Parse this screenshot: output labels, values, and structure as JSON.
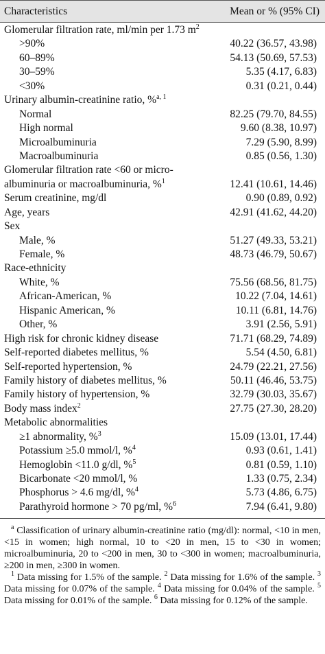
{
  "table": {
    "header": [
      "Characteristics",
      "Mean or % (95% CI)"
    ],
    "rows": [
      {
        "label": "Glomerular filtration rate, ml/min per 1.73 m",
        "sup": "2",
        "items": [
          {
            "label": ">90%",
            "value": "40.22 (36.57, 43.98)"
          },
          {
            "label": "60–89%",
            "value": "54.13 (50.69, 57.53)"
          },
          {
            "label": "30–59%",
            "value": "5.35 (4.17, 6.83)"
          },
          {
            "label": "<30%",
            "value": "0.31 (0.21, 0.44)"
          }
        ]
      },
      {
        "label": "Urinary albumin-creatinine ratio, %",
        "sup": "a, 1",
        "items": [
          {
            "label": "Normal",
            "value": "82.25 (79.70, 84.55)"
          },
          {
            "label": "High normal",
            "value": "9.60 (8.38, 10.97)"
          },
          {
            "label": "Microalbuminuria",
            "value": "7.29 (5.90, 8.99)"
          },
          {
            "label": "Macroalbuminuria",
            "value": "0.85 (0.56, 1.30)"
          }
        ]
      },
      {
        "label_lines": [
          "Glomerular filtration rate <60 or micro-",
          "albuminuria or macroalbuminuria, %"
        ],
        "sup": "1",
        "value": "12.41 (10.61, 14.46)"
      },
      {
        "label": "Serum creatinine, mg/dl",
        "value": "0.90 (0.89, 0.92)"
      },
      {
        "label": "Age, years",
        "value": "42.91 (41.62, 44.20)"
      },
      {
        "label": "Sex",
        "items": [
          {
            "label": "Male, %",
            "value": "51.27 (49.33, 53.21)"
          },
          {
            "label": "Female, %",
            "value": "48.73 (46.79, 50.67)"
          }
        ]
      },
      {
        "label": "Race-ethnicity",
        "items": [
          {
            "label": "White, %",
            "value": "75.56 (68.56, 81.75)"
          },
          {
            "label": "African-American, %",
            "value": "10.22 (7.04, 14.61)"
          },
          {
            "label": "Hispanic American, %",
            "value": "10.11 (6.81, 14.76)"
          },
          {
            "label": "Other, %",
            "value": "3.91 (2.56, 5.91)"
          }
        ]
      },
      {
        "label": "High risk for chronic kidney disease",
        "value": "71.71 (68.29, 74.89)"
      },
      {
        "label": "Self-reported diabetes mellitus, %",
        "value": "5.54 (4.50, 6.81)"
      },
      {
        "label": "Self-reported hypertension, %",
        "value": "24.79 (22.21, 27.56)"
      },
      {
        "label": "Family history of diabetes mellitus, %",
        "value": "50.11 (46.46, 53.75)"
      },
      {
        "label": "Family history of hypertension, %",
        "value": "32.79 (30.03, 35.67)"
      },
      {
        "label": "Body mass index",
        "sup": "2",
        "value": "27.75 (27.30, 28.20)"
      },
      {
        "label": "Metabolic abnormalities",
        "items": [
          {
            "label": "≥1 abnormality, %",
            "sup": "3",
            "value": "15.09 (13.01, 17.44)"
          },
          {
            "label": "Potassium ≥5.0 mmol/l, %",
            "sup": "4",
            "value": "0.93 (0.61, 1.41)"
          },
          {
            "label": "Hemoglobin <11.0 g/dl, %",
            "sup": "5",
            "value": "0.81 (0.59, 1.10)"
          },
          {
            "label": "Bicarbonate <20 mmol/l, %",
            "value": "1.33 (0.75, 2.34)"
          },
          {
            "label": "Phosphorus > 4.6 mg/dl, %",
            "sup": "4",
            "value": "5.73 (4.86, 6.75)"
          },
          {
            "label": "Parathyroid hormone > 70 pg/ml, %",
            "sup": "6",
            "value": "7.94 (6.41, 9.80)"
          }
        ]
      }
    ]
  },
  "footnotes": [
    {
      "sup": "a",
      "text": "Classification of urinary albumin-creatinine ratio (mg/dl): normal, <10 in men, <15 in women; high normal, 10 to <20 in men, 15 to <30 in women; microalbuminuria, 20 to <200 in men, 30 to <300 in women; macroalbuminuria, ≥200 in men, ≥300 in women."
    },
    {
      "sup": "1",
      "text": "Data missing for 1.5% of the sample."
    },
    {
      "sup": "2",
      "text": "Data missing for 1.6% of the sample."
    },
    {
      "sup": "3",
      "text": "Data missing for 0.07% of the sample."
    },
    {
      "sup": "4",
      "text": "Data missing for 0.04% of the sample."
    },
    {
      "sup": "5",
      "text": "Data missing for 0.01% of the sample."
    },
    {
      "sup": "6",
      "text": "Data missing for 0.12% of the sample."
    }
  ]
}
